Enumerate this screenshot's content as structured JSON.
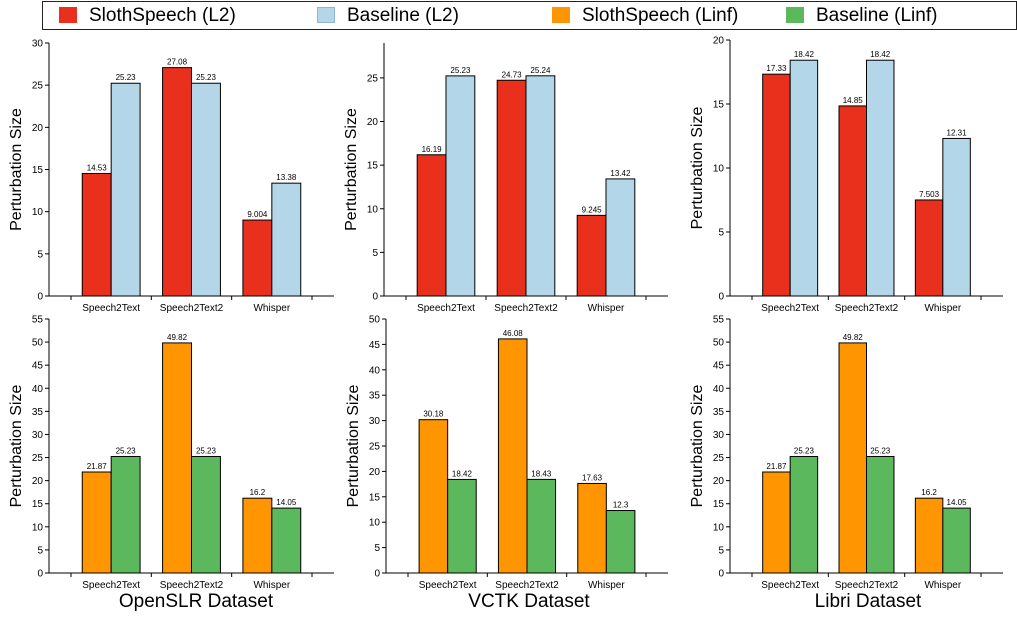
{
  "legend": [
    {
      "label": "SlothSpeech (L2)",
      "color": "#e8301c"
    },
    {
      "label": "Baseline (L2)",
      "color": "#b3d7e8"
    },
    {
      "label": "SlothSpeech (Linf)",
      "color": "#ff9500"
    },
    {
      "label": "Baseline (Linf)",
      "color": "#5cb85c"
    }
  ],
  "dataset_titles": [
    "OpenSLR Dataset",
    "VCTK Dataset",
    "Libri Dataset"
  ],
  "chart_data": [
    {
      "type": "bar",
      "ylabel": "Perturbation Size",
      "categories": [
        "Speech2Text",
        "Speech2Text2",
        "Whisper"
      ],
      "ylim": [
        0,
        30
      ],
      "yticks": [
        0,
        5,
        10,
        15,
        20,
        25,
        30
      ],
      "series": [
        {
          "name": "SlothSpeech (L2)",
          "values": [
            14.53,
            27.08,
            9.004
          ],
          "labels": [
            "14.53",
            "27.08",
            "9.004"
          ],
          "color": "#e8301c"
        },
        {
          "name": "Baseline (L2)",
          "values": [
            25.23,
            25.23,
            13.38
          ],
          "labels": [
            "25.23",
            "25.23",
            "13.38"
          ],
          "color": "#b3d7e8"
        }
      ]
    },
    {
      "type": "bar",
      "ylabel": "Perturbation Size",
      "categories": [
        "Speech2Text",
        "Speech2Text2",
        "Whisper"
      ],
      "ylim": [
        0,
        29
      ],
      "yticks": [
        0,
        5,
        10,
        15,
        20,
        25
      ],
      "series": [
        {
          "name": "SlothSpeech (L2)",
          "values": [
            16.19,
            24.73,
            9.245
          ],
          "labels": [
            "16.19",
            "24.73",
            "9.245"
          ],
          "color": "#e8301c"
        },
        {
          "name": "Baseline (L2)",
          "values": [
            25.23,
            25.24,
            13.42
          ],
          "labels": [
            "25.23",
            "25.24",
            "13.42"
          ],
          "color": "#b3d7e8"
        }
      ]
    },
    {
      "type": "bar",
      "ylabel": "Perturbation Size",
      "categories": [
        "Speech2Text",
        "Speech2Text2",
        "Whisper"
      ],
      "ylim": [
        0,
        20
      ],
      "yticks": [
        0,
        5,
        10,
        15,
        20
      ],
      "series": [
        {
          "name": "SlothSpeech (L2)",
          "values": [
            17.33,
            14.85,
            7.503
          ],
          "labels": [
            "17.33",
            "14.85",
            "7.503"
          ],
          "color": "#e8301c"
        },
        {
          "name": "Baseline (L2)",
          "values": [
            18.42,
            18.42,
            12.31
          ],
          "labels": [
            "18.42",
            "18.42",
            "12.31"
          ],
          "color": "#b3d7e8"
        }
      ]
    },
    {
      "type": "bar",
      "ylabel": "Perturbation Size",
      "categories": [
        "Speech2Text",
        "Speech2Text2",
        "Whisper"
      ],
      "ylim": [
        0,
        55
      ],
      "yticks": [
        0,
        5,
        10,
        15,
        20,
        25,
        30,
        35,
        40,
        45,
        50,
        55
      ],
      "series": [
        {
          "name": "SlothSpeech (Linf)",
          "values": [
            21.87,
            49.82,
            16.2
          ],
          "labels": [
            "21.87",
            "49.82",
            "16.2"
          ],
          "color": "#ff9500"
        },
        {
          "name": "Baseline (Linf)",
          "values": [
            25.23,
            25.23,
            14.05
          ],
          "labels": [
            "25.23",
            "25.23",
            "14.05"
          ],
          "color": "#5cb85c"
        }
      ]
    },
    {
      "type": "bar",
      "ylabel": "Perturbation Size",
      "categories": [
        "Speech2Text",
        "Speech2Text2",
        "Whisper"
      ],
      "ylim": [
        0,
        50
      ],
      "yticks": [
        0,
        5,
        10,
        15,
        20,
        25,
        30,
        35,
        40,
        45,
        50
      ],
      "series": [
        {
          "name": "SlothSpeech (Linf)",
          "values": [
            30.18,
            46.08,
            17.63
          ],
          "labels": [
            "30.18",
            "46.08",
            "17.63"
          ],
          "color": "#ff9500"
        },
        {
          "name": "Baseline (Linf)",
          "values": [
            18.42,
            18.43,
            12.3
          ],
          "labels": [
            "18.42",
            "18.43",
            "12.3"
          ],
          "color": "#5cb85c"
        }
      ]
    },
    {
      "type": "bar",
      "ylabel": "Perturbation Size",
      "categories": [
        "Speech2Text",
        "Speech2Text2",
        "Whisper"
      ],
      "ylim": [
        0,
        55
      ],
      "yticks": [
        0,
        5,
        10,
        15,
        20,
        25,
        30,
        35,
        40,
        45,
        50,
        55
      ],
      "series": [
        {
          "name": "SlothSpeech (Linf)",
          "values": [
            21.87,
            49.82,
            16.2
          ],
          "labels": [
            "21.87",
            "49.82",
            "16.2"
          ],
          "color": "#ff9500"
        },
        {
          "name": "Baseline (Linf)",
          "values": [
            25.23,
            25.23,
            14.05
          ],
          "labels": [
            "25.23",
            "25.23",
            "14.05"
          ],
          "color": "#5cb85c"
        }
      ]
    }
  ]
}
